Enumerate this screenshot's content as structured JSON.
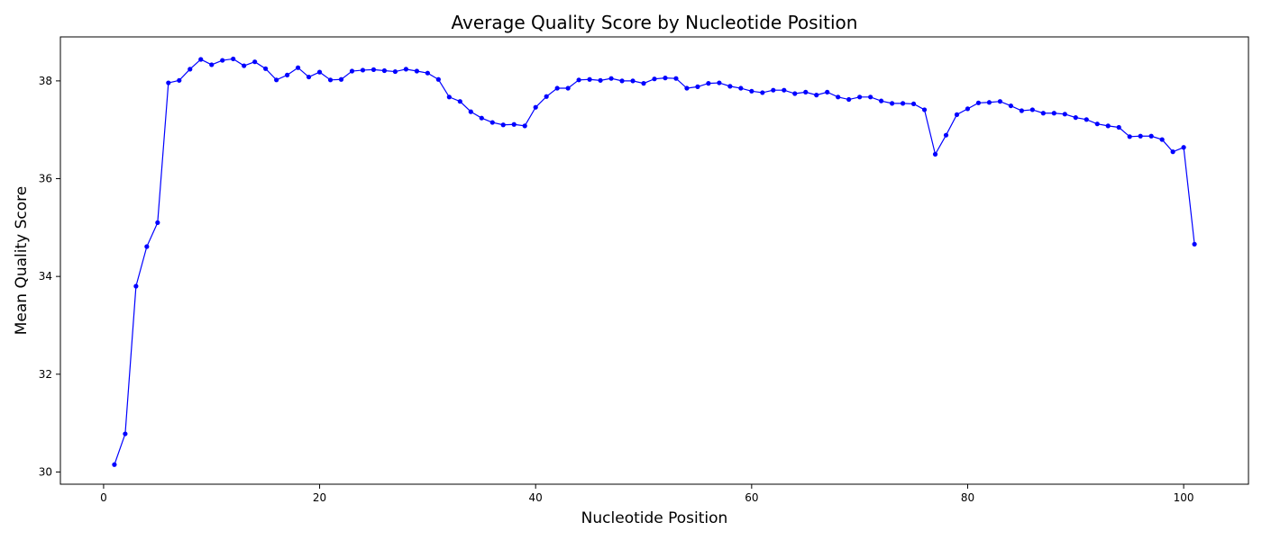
{
  "chart_data": {
    "type": "line",
    "title": "Average Quality Score by Nucleotide Position",
    "xlabel": "Nucleotide Position",
    "ylabel": "Mean Quality Score",
    "xlim": [
      -4,
      106
    ],
    "ylim": [
      29.75,
      38.9
    ],
    "xticks": [
      0,
      20,
      40,
      60,
      80,
      100
    ],
    "yticks": [
      30,
      32,
      34,
      36,
      38
    ],
    "grid": false,
    "legend": "none",
    "line_color": "#0000ff",
    "marker": "circle",
    "series": [
      {
        "x": [
          1,
          2,
          3,
          4,
          5,
          6,
          7,
          8,
          9,
          10,
          11,
          12,
          13,
          14,
          15,
          16,
          17,
          18,
          19,
          20,
          21,
          22,
          23,
          24,
          25,
          26,
          27,
          28,
          29,
          30,
          31,
          32,
          33,
          34,
          35,
          36,
          37,
          38,
          39,
          40,
          41,
          42,
          43,
          44,
          45,
          46,
          47,
          48,
          49,
          50,
          51,
          52,
          53,
          54,
          55,
          56,
          57,
          58,
          59,
          60,
          61,
          62,
          63,
          64,
          65,
          66,
          67,
          68,
          69,
          70,
          71,
          72,
          73,
          74,
          75,
          76,
          77,
          78,
          79,
          80,
          81,
          82,
          83,
          84,
          85,
          86,
          87,
          88,
          89,
          90,
          91,
          92,
          93,
          94,
          95,
          96,
          97,
          98,
          99,
          100,
          101
        ],
        "values": [
          30.15,
          30.78,
          33.8,
          34.61,
          35.1,
          37.96,
          38.01,
          38.24,
          38.44,
          38.33,
          38.42,
          38.45,
          38.31,
          38.39,
          38.25,
          38.02,
          38.12,
          38.27,
          38.08,
          38.18,
          38.02,
          38.03,
          38.2,
          38.22,
          38.23,
          38.21,
          38.19,
          38.24,
          38.2,
          38.16,
          38.03,
          37.67,
          37.58,
          37.37,
          37.24,
          37.15,
          37.1,
          37.11,
          37.08,
          37.46,
          37.68,
          37.85,
          37.85,
          38.02,
          38.03,
          38.01,
          38.05,
          38.0,
          38.0,
          37.95,
          38.04,
          38.06,
          38.05,
          37.85,
          37.88,
          37.95,
          37.96,
          37.89,
          37.85,
          37.79,
          37.76,
          37.81,
          37.81,
          37.74,
          37.77,
          37.71,
          37.77,
          37.67,
          37.62,
          37.67,
          37.67,
          37.59,
          37.54,
          37.54,
          37.53,
          37.41,
          36.5,
          36.89,
          37.31,
          37.43,
          37.55,
          37.56,
          37.58,
          37.49,
          37.39,
          37.41,
          37.34,
          37.34,
          37.32,
          37.25,
          37.21,
          37.12,
          37.08,
          37.05,
          36.86,
          36.87,
          36.87,
          36.8,
          36.55,
          36.64,
          34.66
        ]
      }
    ]
  }
}
